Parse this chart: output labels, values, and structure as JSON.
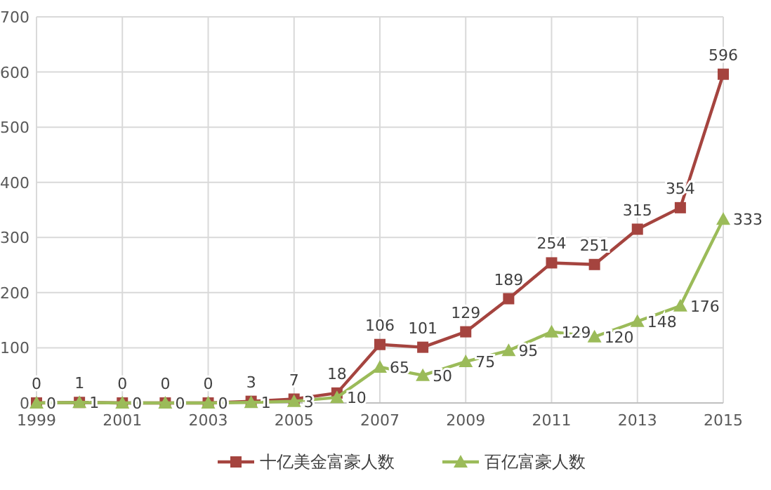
{
  "chart_data": {
    "type": "line",
    "x": [
      1999,
      2000,
      2001,
      2002,
      2003,
      2004,
      2005,
      2006,
      2007,
      2008,
      2009,
      2010,
      2011,
      2012,
      2013,
      2014,
      2015
    ],
    "series": [
      {
        "name": "十亿美金富豪人数",
        "color": "#a5443f",
        "marker": "square",
        "values": [
          0,
          1,
          0,
          0,
          0,
          3,
          7,
          18,
          106,
          101,
          129,
          189,
          254,
          251,
          315,
          354,
          596
        ]
      },
      {
        "name": "百亿富豪人数",
        "color": "#9bbb59",
        "marker": "triangle",
        "values": [
          0,
          1,
          0,
          0,
          0,
          1,
          3,
          10,
          65,
          50,
          75,
          95,
          129,
          120,
          148,
          176,
          333
        ]
      }
    ],
    "xlim": [
      1999,
      2015
    ],
    "xticks": [
      1999,
      2001,
      2003,
      2005,
      2007,
      2009,
      2011,
      2013,
      2015
    ],
    "ylim": [
      0,
      700
    ],
    "yticks": [
      0,
      100,
      200,
      300,
      400,
      500,
      600,
      700
    ],
    "grid": true,
    "legend": "bottom",
    "data_labels": true
  }
}
